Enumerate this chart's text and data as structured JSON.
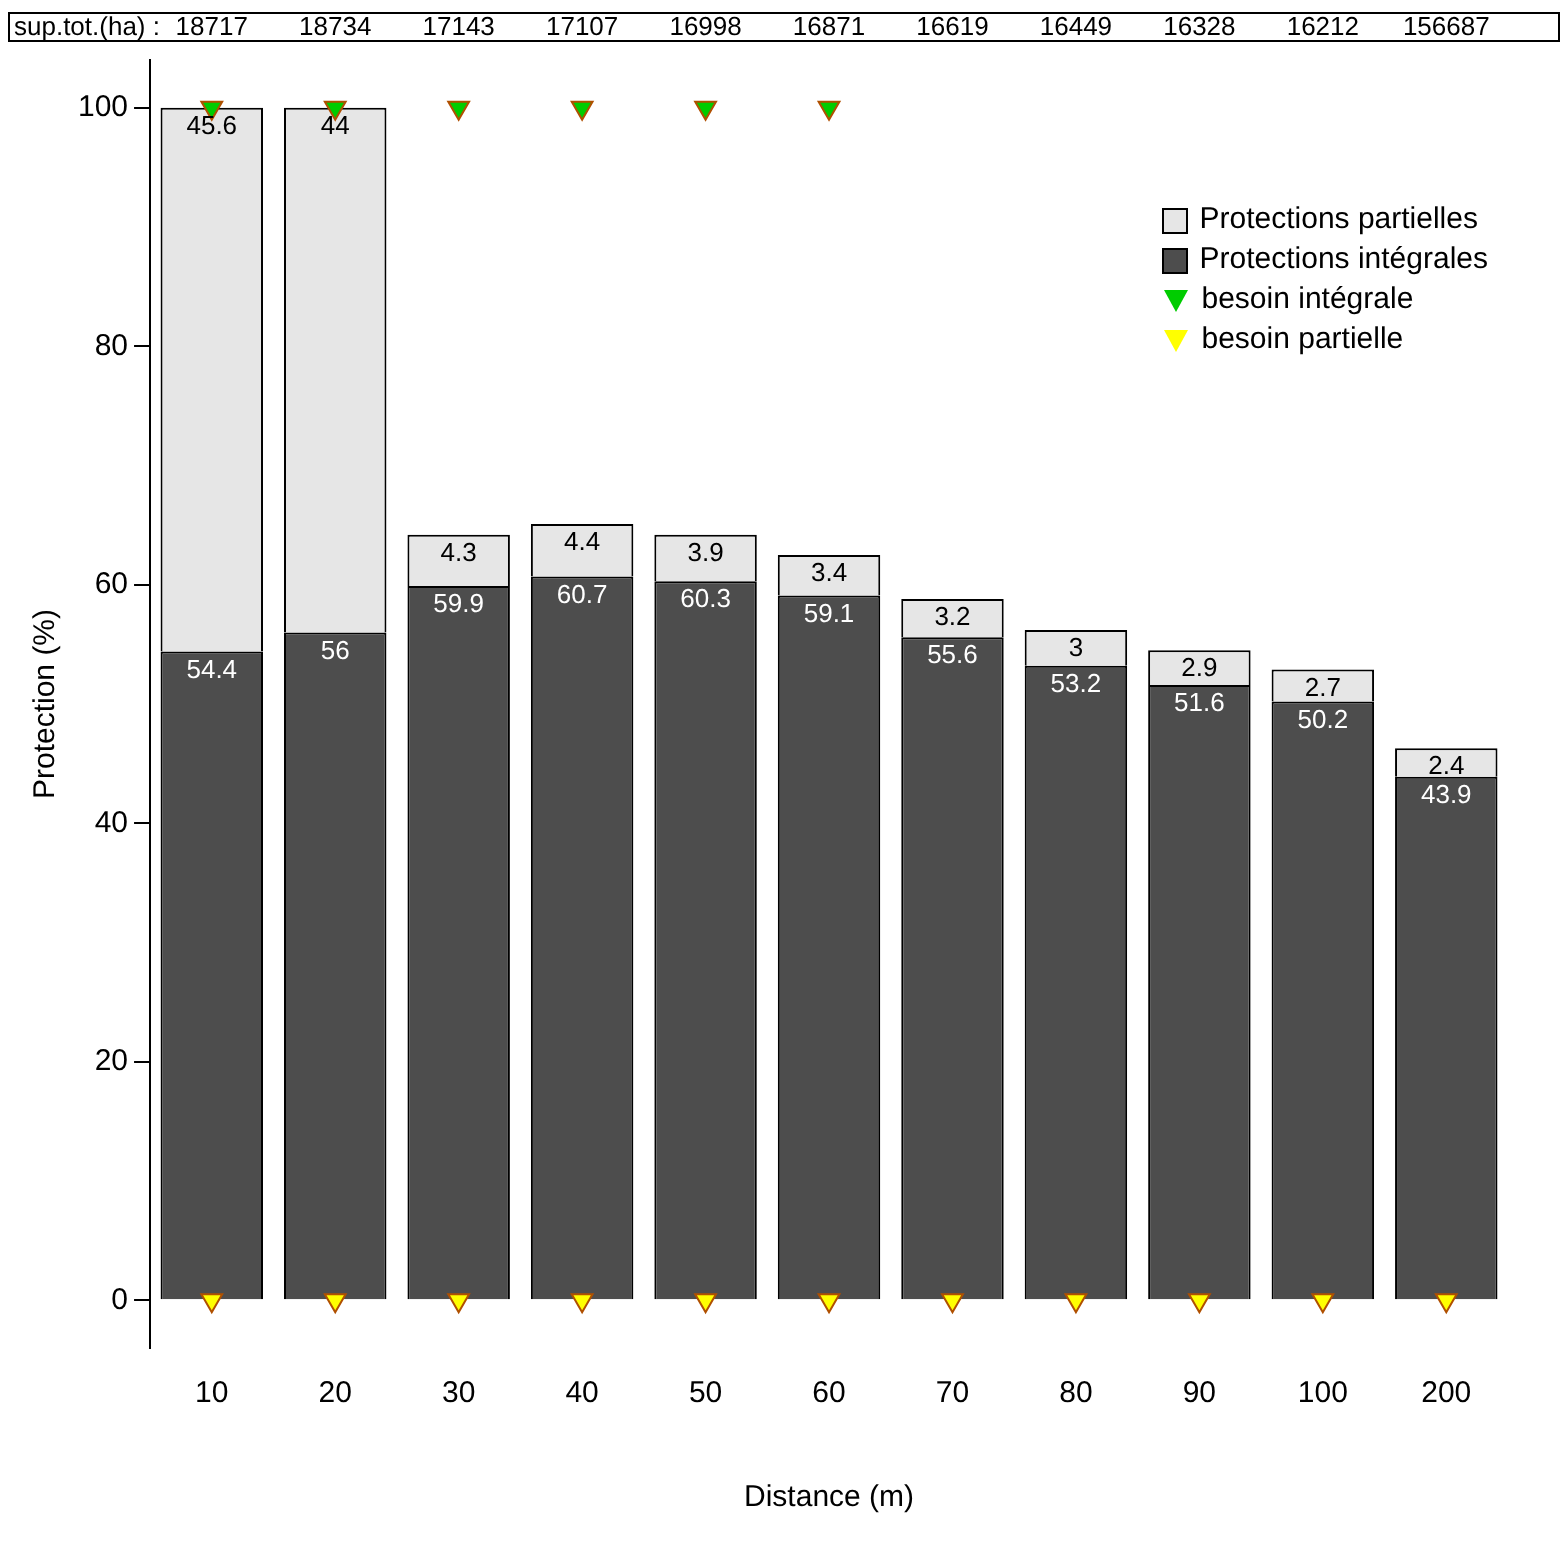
{
  "chart_data": {
    "type": "bar",
    "stacked": true,
    "xlabel": "Distance (m)",
    "ylabel": "Protection (%)",
    "categories": [
      "10",
      "20",
      "30",
      "40",
      "50",
      "60",
      "70",
      "80",
      "90",
      "100",
      "200"
    ],
    "series": [
      {
        "name": "Protections intégrales",
        "color": "#4d4d4d",
        "values": [
          54.4,
          56,
          59.9,
          60.7,
          60.3,
          59.1,
          55.6,
          53.2,
          51.6,
          50.2,
          43.9
        ],
        "value_labels": [
          "54.4",
          "56",
          "59.9",
          "60.7",
          "60.3",
          "59.1",
          "55.6",
          "53.2",
          "51.6",
          "50.2",
          "43.9"
        ]
      },
      {
        "name": "Protections partielles",
        "color": "#e6e6e6",
        "values": [
          45.6,
          44,
          4.3,
          4.4,
          3.9,
          3.4,
          3.2,
          3,
          2.9,
          2.7,
          2.4
        ],
        "value_labels": [
          "45.6",
          "44",
          "4.3",
          "4.4",
          "3.9",
          "3.4",
          "3.2",
          "3",
          "2.9",
          "2.7",
          "2.4"
        ]
      },
      {
        "name": "besoin intégrale",
        "type": "scatter",
        "marker": "triangle",
        "color": "#00cc00",
        "x": [
          "10",
          "20",
          "30",
          "40",
          "50",
          "60"
        ],
        "values": [
          100,
          100,
          100,
          100,
          100,
          100
        ]
      },
      {
        "name": "besoin partielle",
        "type": "scatter",
        "marker": "triangle",
        "color": "#ffff00",
        "x": [
          "10",
          "20",
          "30",
          "40",
          "50",
          "60",
          "70",
          "80",
          "90",
          "100",
          "200"
        ],
        "values": [
          0,
          0,
          0,
          0,
          0,
          0,
          0,
          0,
          0,
          0,
          0
        ]
      }
    ],
    "ylim": [
      -4,
      104
    ],
    "yticks": [
      0,
      20,
      40,
      60,
      80,
      100
    ],
    "grid": false,
    "legend": "top right",
    "annotations": [
      "sup.tot.(ha) :",
      "18717",
      "18734",
      "17143",
      "17107",
      "16998",
      "16871",
      "16619",
      "16449",
      "16328",
      "16212",
      "156687"
    ]
  }
}
